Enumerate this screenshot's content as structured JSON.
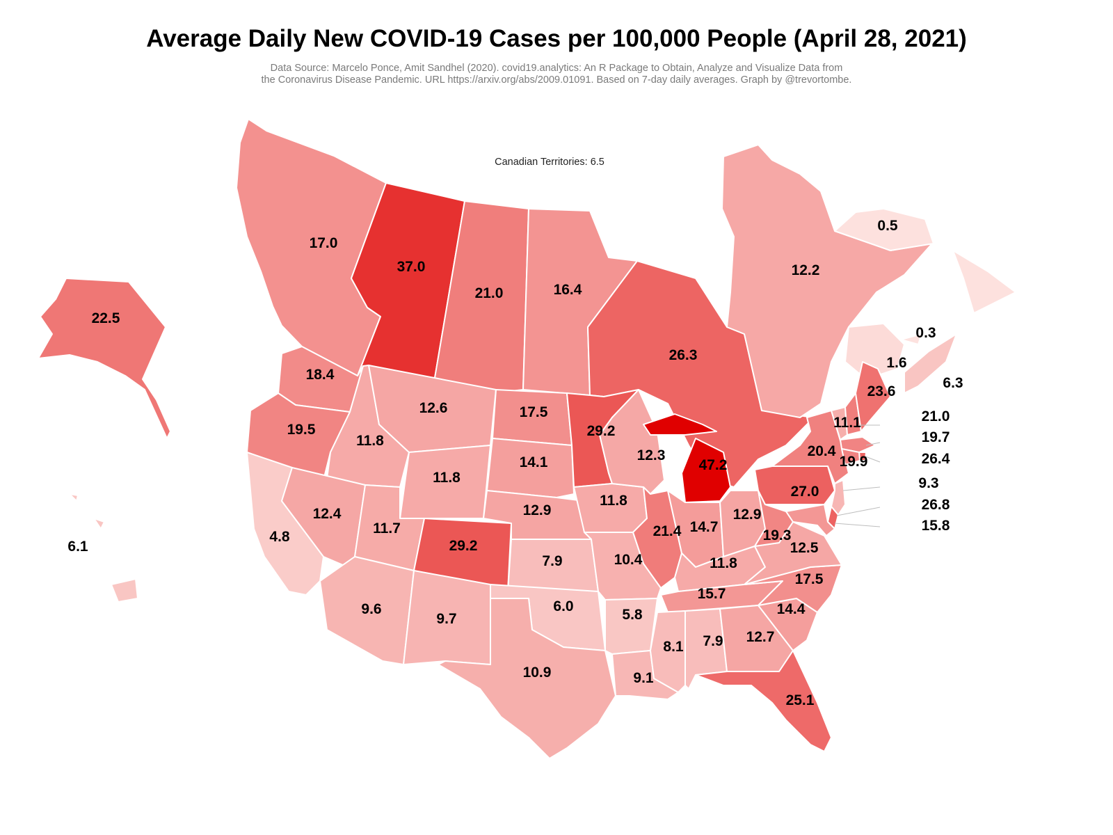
{
  "title": "Average Daily New COVID-19 Cases per 100,000 People (April 28, 2021)",
  "subtitle_line1": "Data Source: Marcelo Ponce, Amit Sandhel (2020). covid19.analytics: An R Package to Obtain, Analyze and Visualize Data from",
  "subtitle_line2": "the Coronavirus Disease Pandemic. URL https://arxiv.org/abs/2009.01091. Based on 7-day daily averages. Graph by @trevortombe.",
  "territories_note": "Canadian Territories: 6.5",
  "color_scale": {
    "low": "#fde3e0",
    "high": "#e00000",
    "min_value": 0,
    "max_value": 47.2
  },
  "regions": [
    {
      "id": "british-columbia",
      "value": 17.0,
      "label": "17.0"
    },
    {
      "id": "alberta",
      "value": 37.0,
      "label": "37.0"
    },
    {
      "id": "saskatchewan",
      "value": 21.0,
      "label": "21.0"
    },
    {
      "id": "manitoba",
      "value": 16.4,
      "label": "16.4"
    },
    {
      "id": "ontario",
      "value": 26.3,
      "label": "26.3"
    },
    {
      "id": "quebec",
      "value": 12.2,
      "label": "12.2"
    },
    {
      "id": "newfoundland-and-labrador",
      "value": 0.5,
      "label": "0.5"
    },
    {
      "id": "prince-edward-island",
      "value": 0.3,
      "label": "0.3"
    },
    {
      "id": "new-brunswick",
      "value": 1.6,
      "label": "1.6"
    },
    {
      "id": "nova-scotia",
      "value": 6.3,
      "label": "6.3"
    },
    {
      "id": "alaska",
      "value": 22.5,
      "label": "22.5"
    },
    {
      "id": "hawaii",
      "value": 6.1,
      "label": "6.1"
    },
    {
      "id": "washington",
      "value": 18.4,
      "label": "18.4"
    },
    {
      "id": "oregon",
      "value": 19.5,
      "label": "19.5"
    },
    {
      "id": "california",
      "value": 4.8,
      "label": "4.8"
    },
    {
      "id": "idaho",
      "value": 11.8,
      "label": "11.8"
    },
    {
      "id": "nevada",
      "value": 12.4,
      "label": "12.4"
    },
    {
      "id": "montana",
      "value": 12.6,
      "label": "12.6"
    },
    {
      "id": "wyoming",
      "value": 11.8,
      "label": "11.8"
    },
    {
      "id": "utah",
      "value": 11.7,
      "label": "11.7"
    },
    {
      "id": "arizona",
      "value": 9.6,
      "label": "9.6"
    },
    {
      "id": "colorado",
      "value": 29.2,
      "label": "29.2"
    },
    {
      "id": "new-mexico",
      "value": 9.7,
      "label": "9.7"
    },
    {
      "id": "north-dakota",
      "value": 17.5,
      "label": "17.5"
    },
    {
      "id": "south-dakota",
      "value": 14.1,
      "label": "14.1"
    },
    {
      "id": "nebraska",
      "value": 12.9,
      "label": "12.9"
    },
    {
      "id": "kansas",
      "value": 7.9,
      "label": "7.9"
    },
    {
      "id": "oklahoma",
      "value": 6.0,
      "label": "6.0"
    },
    {
      "id": "texas",
      "value": 10.9,
      "label": "10.9"
    },
    {
      "id": "minnesota",
      "value": 29.2,
      "label": "29.2"
    },
    {
      "id": "iowa",
      "value": 11.8,
      "label": "11.8"
    },
    {
      "id": "missouri",
      "value": 10.4,
      "label": "10.4"
    },
    {
      "id": "arkansas",
      "value": 5.8,
      "label": "5.8"
    },
    {
      "id": "louisiana",
      "value": 9.1,
      "label": "9.1"
    },
    {
      "id": "wisconsin",
      "value": 12.3,
      "label": "12.3"
    },
    {
      "id": "illinois",
      "value": 21.4,
      "label": "21.4"
    },
    {
      "id": "michigan",
      "value": 47.2,
      "label": "47.2"
    },
    {
      "id": "indiana",
      "value": 14.7,
      "label": "14.7"
    },
    {
      "id": "ohio",
      "value": 12.9,
      "label": "12.9"
    },
    {
      "id": "kentucky",
      "value": 11.8,
      "label": "11.8"
    },
    {
      "id": "tennessee",
      "value": 15.7,
      "label": "15.7"
    },
    {
      "id": "mississippi",
      "value": 8.1,
      "label": "8.1"
    },
    {
      "id": "alabama",
      "value": 7.9,
      "label": "7.9"
    },
    {
      "id": "georgia",
      "value": 12.7,
      "label": "12.7"
    },
    {
      "id": "florida",
      "value": 25.1,
      "label": "25.1"
    },
    {
      "id": "south-carolina",
      "value": 14.4,
      "label": "14.4"
    },
    {
      "id": "north-carolina",
      "value": 17.5,
      "label": "17.5"
    },
    {
      "id": "virginia",
      "value": 12.5,
      "label": "12.5"
    },
    {
      "id": "west-virginia",
      "value": 19.3,
      "label": "19.3"
    },
    {
      "id": "pennsylvania",
      "value": 27.0,
      "label": "27.0"
    },
    {
      "id": "new-york",
      "value": 20.4,
      "label": "20.4"
    },
    {
      "id": "vermont",
      "value": 11.1,
      "label": "11.1"
    },
    {
      "id": "new-hampshire",
      "value": 21.0,
      "label": "21.0"
    },
    {
      "id": "maine",
      "value": 23.6,
      "label": "23.6"
    },
    {
      "id": "massachusetts",
      "value": 19.7,
      "label": "19.7"
    },
    {
      "id": "rhode-island",
      "value": 26.4,
      "label": "26.4"
    },
    {
      "id": "connecticut",
      "value": 19.9,
      "label": "19.9"
    },
    {
      "id": "new-jersey",
      "value": 9.3,
      "label": "9.3"
    },
    {
      "id": "delaware",
      "value": 26.8,
      "label": "26.8"
    },
    {
      "id": "maryland",
      "value": 15.8,
      "label": "15.8"
    }
  ]
}
